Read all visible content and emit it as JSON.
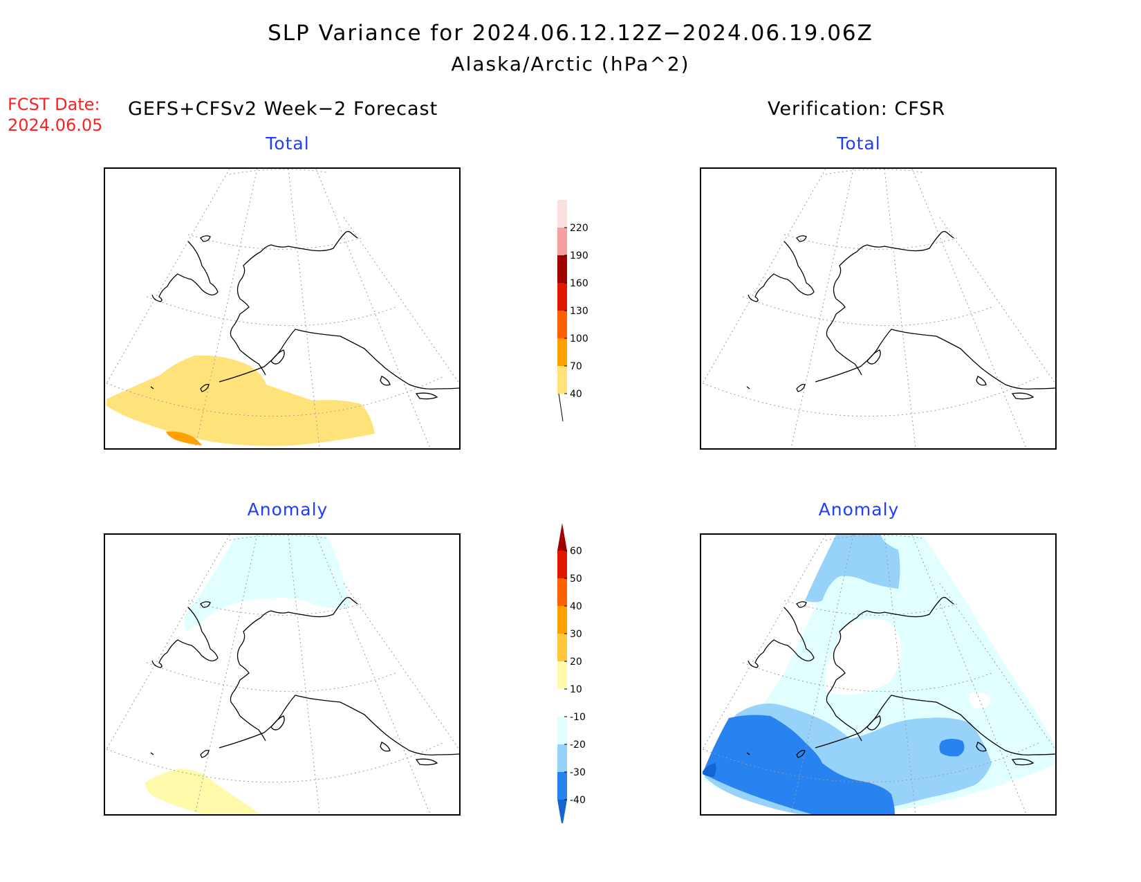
{
  "title": {
    "line1": "SLP Variance for 2024.06.12.12Z−2024.06.19.06Z",
    "line2": "Alaska/Arctic (hPa^2)"
  },
  "fcst_date": {
    "label": "FCST Date:",
    "value": "2024.06.05"
  },
  "columns": {
    "left_header": "GEFS+CFSv2 Week−2 Forecast",
    "right_header": "Verification: CFSR"
  },
  "panels": {
    "forecast_total": {
      "title": "Total"
    },
    "verif_total": {
      "title": "Total"
    },
    "forecast_anomaly": {
      "title": "Anomaly"
    },
    "verif_anomaly": {
      "title": "Anomaly"
    }
  },
  "colorbars": {
    "total": {
      "labels": [
        "40",
        "70",
        "100",
        "130",
        "160",
        "190",
        "220"
      ],
      "colors": [
        "#ffe37a",
        "#ffa000",
        "#ff6000",
        "#e01800",
        "#a00000",
        "#f4a0a0",
        "#fbe0e0"
      ]
    },
    "anomaly": {
      "labels": [
        "-40",
        "-30",
        "-20",
        "-10",
        "10",
        "20",
        "30",
        "40",
        "50",
        "60"
      ],
      "colors": [
        "#1464d2",
        "#2882f0",
        "#96d2fa",
        "#e1ffff",
        "#ffffff",
        "#fffaaa",
        "#ffc83c",
        "#ffa000",
        "#ff6000",
        "#e01800",
        "#a00000"
      ]
    }
  },
  "colors": {
    "title_red": "#ff2020",
    "panel_title_blue": "#1f3cff"
  }
}
